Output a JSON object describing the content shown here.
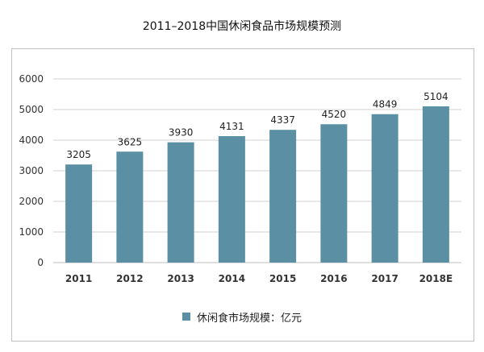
{
  "chart_data": {
    "type": "bar",
    "title": "2011–2018中国休闲食品市场规模预测",
    "categories": [
      "2011",
      "2012",
      "2013",
      "2014",
      "2015",
      "2016",
      "2017",
      "2018E"
    ],
    "series": [
      {
        "name": "休闲食市场规模：亿元",
        "values": [
          3205,
          3625,
          3930,
          4131,
          4337,
          4520,
          4849,
          5104
        ]
      }
    ],
    "data_labels": [
      "3205",
      "3625",
      "3930",
      "4131",
      "4337",
      "4520",
      "4849",
      "5104"
    ],
    "ylim": [
      0,
      6000
    ],
    "yticks": [
      "0",
      "1000",
      "2000",
      "3000",
      "4000",
      "5000",
      "6000"
    ],
    "grid": true,
    "legend_position": "bottom",
    "bar_color": "#5b8fa3"
  }
}
